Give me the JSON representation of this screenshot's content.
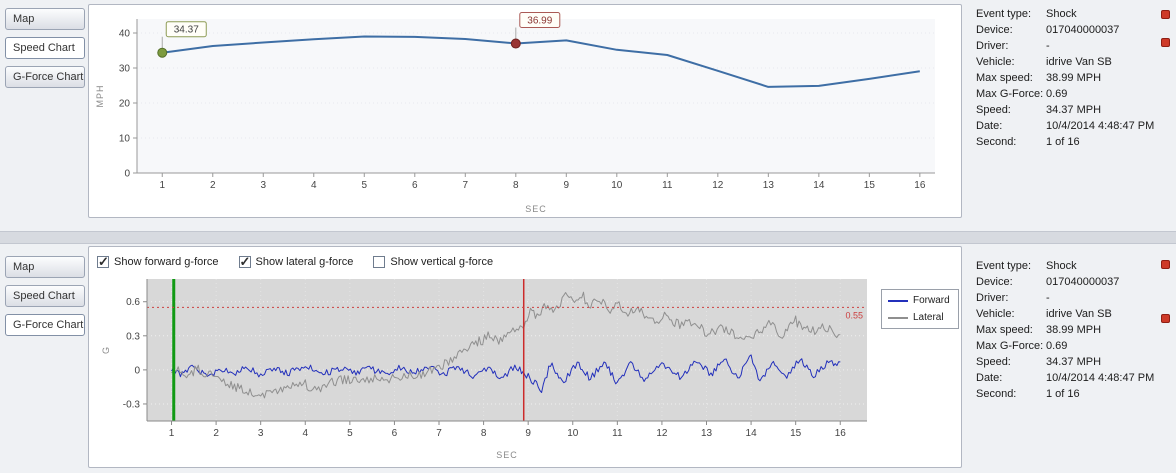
{
  "tabs_top": [
    {
      "label": "Map",
      "active": false
    },
    {
      "label": "Speed Chart",
      "active": true
    },
    {
      "label": "G-Force Chart",
      "active": false
    }
  ],
  "tabs_bottom": [
    {
      "label": "Map",
      "active": false
    },
    {
      "label": "Speed Chart",
      "active": false
    },
    {
      "label": "G-Force Chart",
      "active": true
    }
  ],
  "gforce_toggles": [
    {
      "label": "Show forward g-force",
      "checked": true
    },
    {
      "label": "Show lateral g-force",
      "checked": true
    },
    {
      "label": "Show vertical g-force",
      "checked": false
    }
  ],
  "event_info": {
    "rows": [
      {
        "label": "Event type:",
        "value": "Shock"
      },
      {
        "label": "Device:",
        "value": "017040000037"
      },
      {
        "label": "Driver:",
        "value": "-"
      },
      {
        "label": "Vehicle:",
        "value": "idrive Van SB"
      },
      {
        "label": "Max speed:",
        "value": "38.99 MPH"
      },
      {
        "label": "Max G-Force:",
        "value": "0.69"
      },
      {
        "label": "Speed:",
        "value": "34.37 MPH"
      },
      {
        "label": "Date:",
        "value": "10/4/2014 4:48:47 PM"
      },
      {
        "label": "Second:",
        "value": "1 of 16"
      }
    ]
  },
  "chart_data": [
    {
      "id": "speed",
      "type": "line",
      "title": "Speed Chart",
      "xlabel": "SEC",
      "ylabel": "MPH",
      "x": [
        1,
        2,
        3,
        4,
        5,
        6,
        7,
        8,
        9,
        10,
        11,
        12,
        13,
        14,
        15,
        16
      ],
      "values": [
        34.37,
        36.3,
        37.3,
        38.2,
        38.99,
        38.9,
        38.3,
        36.99,
        37.9,
        35.2,
        33.7,
        29.2,
        24.6,
        24.9,
        26.9,
        29.1
      ],
      "xlim": [
        0.5,
        16.3
      ],
      "ylim": [
        0,
        44
      ],
      "xticks": [
        1,
        2,
        3,
        4,
        5,
        6,
        7,
        8,
        9,
        10,
        11,
        12,
        13,
        14,
        15,
        16
      ],
      "yticks": [
        0,
        10,
        20,
        30,
        40
      ],
      "line_color": "#3e6ea5",
      "markers": [
        {
          "x": 1,
          "y": 34.37,
          "label": "34.37",
          "fill": "#7d9b3f",
          "stroke": "#55702a",
          "label_color": "#3f3f3f",
          "box_stroke": "#8e9c55"
        },
        {
          "x": 8,
          "y": 36.99,
          "label": "36.99",
          "fill": "#993433",
          "stroke": "#6f201f",
          "label_color": "#8b3734",
          "box_stroke": "#aa5a55"
        }
      ]
    },
    {
      "id": "gforce",
      "type": "line",
      "title": "G-Force Chart",
      "xlabel": "SEC",
      "ylabel": "G",
      "xlim": [
        0.45,
        16.6
      ],
      "ylim": [
        -0.45,
        0.8
      ],
      "xticks": [
        1,
        2,
        3,
        4,
        5,
        6,
        7,
        8,
        9,
        10,
        11,
        12,
        13,
        14,
        15,
        16
      ],
      "yticks": [
        -0.3,
        0,
        0.3,
        0.6
      ],
      "threshold": {
        "y": 0.55,
        "label": "0.55",
        "color": "#cc4040"
      },
      "cursors": [
        {
          "x": 1.05,
          "color": "#119a14",
          "width": 3
        },
        {
          "x": 8.9,
          "color": "#cc2a2a",
          "width": 1.5
        }
      ],
      "series": [
        {
          "name": "Forward",
          "color": "#2330bb",
          "noise": 0.03,
          "seed": 42,
          "keypoints": [
            [
              1,
              0.02
            ],
            [
              1.2,
              -0.05
            ],
            [
              1.5,
              0.04
            ],
            [
              1.8,
              -0.06
            ],
            [
              2.1,
              0.01
            ],
            [
              2.4,
              -0.04
            ],
            [
              2.7,
              0.03
            ],
            [
              3,
              -0.05
            ],
            [
              3.3,
              0.02
            ],
            [
              3.6,
              -0.03
            ],
            [
              4,
              0.04
            ],
            [
              4.4,
              -0.04
            ],
            [
              4.8,
              0.02
            ],
            [
              5.1,
              -0.03
            ],
            [
              5.4,
              0.03
            ],
            [
              5.8,
              -0.05
            ],
            [
              6.1,
              0.02
            ],
            [
              6.4,
              -0.03
            ],
            [
              6.8,
              0.04
            ],
            [
              7.1,
              -0.04
            ],
            [
              7.4,
              0.03
            ],
            [
              7.8,
              -0.06
            ],
            [
              8.1,
              0.02
            ],
            [
              8.4,
              -0.08
            ],
            [
              8.7,
              0.03
            ],
            [
              9,
              -0.06
            ],
            [
              9.3,
              -0.17
            ],
            [
              9.5,
              0.05
            ],
            [
              9.8,
              -0.1
            ],
            [
              10.1,
              0.06
            ],
            [
              10.4,
              -0.08
            ],
            [
              10.7,
              0.08
            ],
            [
              11,
              -0.12
            ],
            [
              11.3,
              0.06
            ],
            [
              11.6,
              -0.08
            ],
            [
              12,
              0.05
            ],
            [
              12.4,
              -0.06
            ],
            [
              12.8,
              0.08
            ],
            [
              13.1,
              -0.05
            ],
            [
              13.4,
              0.1
            ],
            [
              13.7,
              -0.08
            ],
            [
              14,
              0.13
            ],
            [
              14.2,
              -0.1
            ],
            [
              14.5,
              0.08
            ],
            [
              14.8,
              -0.06
            ],
            [
              15.1,
              0.1
            ],
            [
              15.4,
              -0.05
            ],
            [
              15.7,
              0.06
            ],
            [
              16,
              0.07
            ]
          ]
        },
        {
          "name": "Lateral",
          "color": "#8f8f8f",
          "noise": 0.045,
          "seed": 77,
          "keypoints": [
            [
              1,
              0.02
            ],
            [
              1.3,
              -0.04
            ],
            [
              1.6,
              0.01
            ],
            [
              2,
              -0.08
            ],
            [
              2.3,
              -0.13
            ],
            [
              2.6,
              -0.18
            ],
            [
              3,
              -0.24
            ],
            [
              3.3,
              -0.2
            ],
            [
              3.6,
              -0.16
            ],
            [
              4,
              -0.13
            ],
            [
              4.3,
              -0.17
            ],
            [
              4.6,
              -0.1
            ],
            [
              5,
              -0.09
            ],
            [
              5.3,
              -0.12
            ],
            [
              5.6,
              -0.06
            ],
            [
              6,
              -0.08
            ],
            [
              6.3,
              -0.04
            ],
            [
              6.6,
              -0.03
            ],
            [
              7,
              0.02
            ],
            [
              7.3,
              0.09
            ],
            [
              7.6,
              0.17
            ],
            [
              7.9,
              0.25
            ],
            [
              8.1,
              0.29
            ],
            [
              8.3,
              0.26
            ],
            [
              8.5,
              0.31
            ],
            [
              8.7,
              0.33
            ],
            [
              8.9,
              0.4
            ],
            [
              9.05,
              0.52
            ],
            [
              9.2,
              0.46
            ],
            [
              9.4,
              0.58
            ],
            [
              9.6,
              0.5
            ],
            [
              9.8,
              0.66
            ],
            [
              10,
              0.6
            ],
            [
              10.2,
              0.67
            ],
            [
              10.4,
              0.56
            ],
            [
              10.6,
              0.62
            ],
            [
              10.8,
              0.53
            ],
            [
              11,
              0.59
            ],
            [
              11.2,
              0.49
            ],
            [
              11.5,
              0.53
            ],
            [
              11.8,
              0.43
            ],
            [
              12.1,
              0.48
            ],
            [
              12.4,
              0.39
            ],
            [
              12.7,
              0.43
            ],
            [
              13,
              0.33
            ],
            [
              13.4,
              0.37
            ],
            [
              13.8,
              0.26
            ],
            [
              14.1,
              0.31
            ],
            [
              14.4,
              0.41
            ],
            [
              14.7,
              0.3
            ],
            [
              15,
              0.43
            ],
            [
              15.3,
              0.33
            ],
            [
              15.6,
              0.39
            ],
            [
              16,
              0.31
            ]
          ]
        }
      ]
    }
  ]
}
